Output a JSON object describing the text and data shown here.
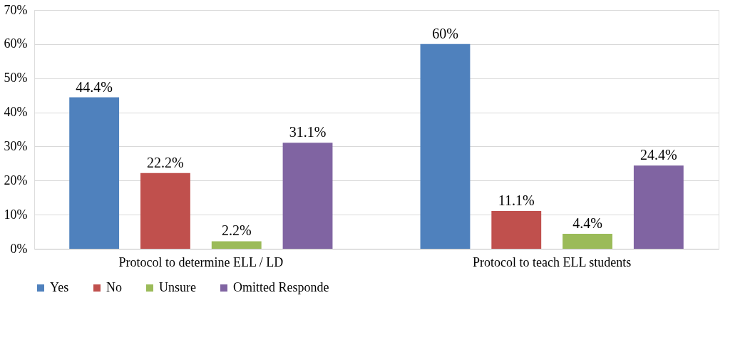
{
  "chart_data": {
    "type": "bar",
    "categories": [
      "Protocol to determine ELL / LD",
      "Protocol to teach ELL students"
    ],
    "series": [
      {
        "name": "Yes",
        "color": "#4f81bd",
        "values": [
          44.4,
          60
        ],
        "value_labels": [
          "44.4%",
          "60%"
        ]
      },
      {
        "name": "No",
        "color": "#c0504d",
        "values": [
          22.2,
          11.1
        ],
        "value_labels": [
          "22.2%",
          "11.1%"
        ]
      },
      {
        "name": "Unsure",
        "color": "#9bbb59",
        "values": [
          2.2,
          4.4
        ],
        "value_labels": [
          "2.2%",
          "4.4%"
        ]
      },
      {
        "name": "Omitted Responde",
        "color": "#8064a2",
        "values": [
          31.1,
          24.4
        ],
        "value_labels": [
          "31.1%",
          "24.4%"
        ]
      }
    ],
    "ylim": [
      0,
      70
    ],
    "yticks": [
      {
        "value": 0,
        "label": "0%"
      },
      {
        "value": 10,
        "label": "10%"
      },
      {
        "value": 20,
        "label": "20%"
      },
      {
        "value": 30,
        "label": "30%"
      },
      {
        "value": 40,
        "label": "40%"
      },
      {
        "value": 50,
        "label": "50%"
      },
      {
        "value": 60,
        "label": "60%"
      },
      {
        "value": 70,
        "label": "70%"
      }
    ],
    "grid": "y",
    "legend": "bottom"
  }
}
